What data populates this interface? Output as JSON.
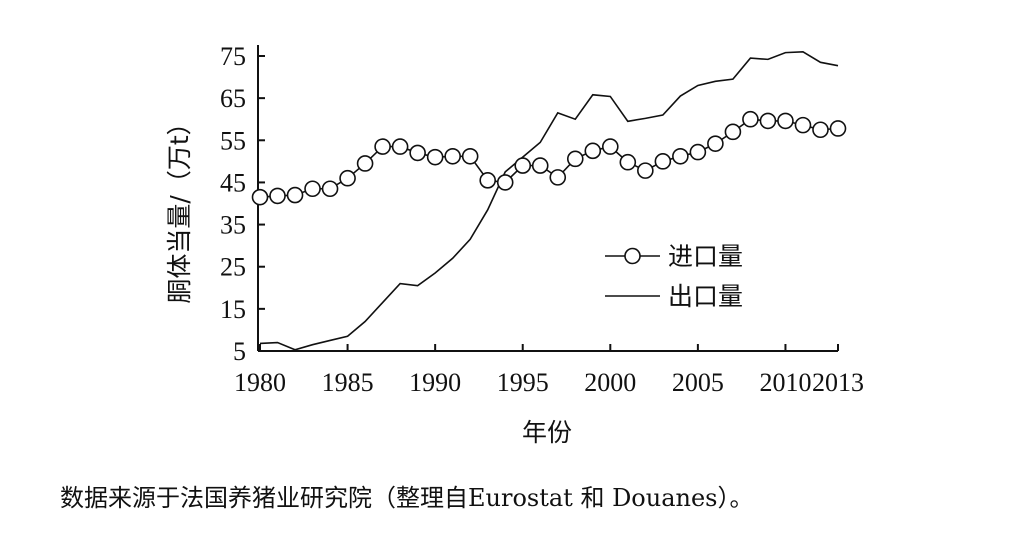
{
  "chart_data": {
    "type": "line",
    "xlabel": "年份",
    "ylabel": "胴体当量/（万t）",
    "xlim": [
      1980,
      2013
    ],
    "ylim": [
      5,
      75
    ],
    "x_ticks": [
      "1980",
      "1985",
      "1990",
      "1995",
      "2000",
      "2005",
      "2010",
      "2013"
    ],
    "y_ticks": [
      "5",
      "15",
      "25",
      "35",
      "45",
      "55",
      "65",
      "75"
    ],
    "x_tick_values": [
      1980,
      1985,
      1990,
      1995,
      2000,
      2005,
      2010,
      2013
    ],
    "y_tick_values": [
      5,
      15,
      25,
      35,
      45,
      55,
      65,
      75
    ],
    "grid": false,
    "legend": "center-right",
    "series": [
      {
        "name": "进口量",
        "marker": "open-circle",
        "x": [
          1980,
          1981,
          1982,
          1983,
          1984,
          1985,
          1986,
          1987,
          1988,
          1989,
          1990,
          1991,
          1992,
          1993,
          1994,
          1995,
          1996,
          1997,
          1998,
          1999,
          2000,
          2001,
          2002,
          2003,
          2004,
          2005,
          2006,
          2007,
          2008,
          2009,
          2010,
          2011,
          2012,
          2013
        ],
        "values": [
          41.5,
          41.8,
          42,
          43.5,
          43.5,
          46,
          49.5,
          53.5,
          53.5,
          52,
          51,
          51.2,
          51.2,
          45.5,
          45,
          49,
          49,
          46.2,
          50.6,
          52.5,
          53.5,
          49.8,
          47.8,
          50,
          51.2,
          52.2,
          54.2,
          57,
          60,
          59.6,
          59.6,
          58.6,
          57.5,
          57.8
        ]
      },
      {
        "name": "出口量",
        "marker": "none",
        "x": [
          1980,
          1981,
          1982,
          1983,
          1984,
          1985,
          1986,
          1987,
          1988,
          1989,
          1990,
          1991,
          1992,
          1993,
          1994,
          1995,
          1996,
          1997,
          1998,
          1999,
          2000,
          2001,
          2002,
          2003,
          2004,
          2005,
          2006,
          2007,
          2008,
          2009,
          2010,
          2011,
          2012,
          2013
        ],
        "values": [
          6.8,
          7,
          5.3,
          6.5,
          7.5,
          8.5,
          12,
          16.5,
          21,
          20.5,
          23.5,
          27,
          31.5,
          38.5,
          47.5,
          51,
          54.5,
          61.5,
          60,
          65.8,
          65.4,
          59.5,
          60.2,
          61,
          65.5,
          68,
          69,
          69.5,
          74.5,
          74.2,
          75.8,
          76,
          73.5,
          72.7
        ]
      }
    ]
  },
  "caption": "数据来源于法国养猪业研究院（整理自Eurostat 和 Douanes）。"
}
